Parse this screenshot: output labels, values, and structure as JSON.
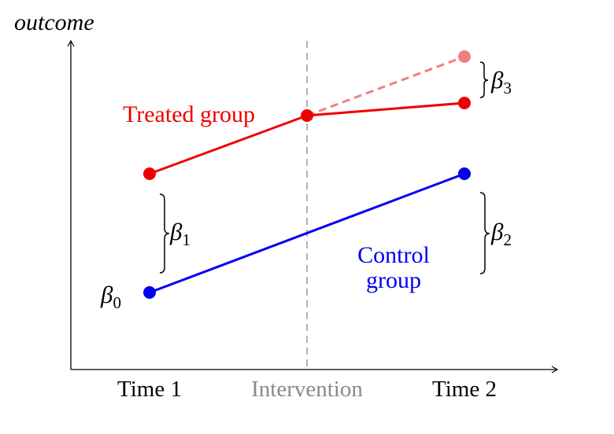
{
  "y_axis_label": "outcome",
  "x_labels": {
    "time1": "Time 1",
    "intervention": "Intervention",
    "time2": "Time 2"
  },
  "groups": {
    "treated": {
      "label": "Treated group",
      "color": "#ee0000"
    },
    "control": {
      "label_line1": "Control",
      "label_line2": "group",
      "color": "#0000ee"
    },
    "counterfactual": {
      "color": "#f08080"
    }
  },
  "params": {
    "b0": {
      "sym": "β",
      "sub": "0"
    },
    "b1": {
      "sym": "β",
      "sub": "1"
    },
    "b2": {
      "sym": "β",
      "sub": "2"
    },
    "b3": {
      "sym": "β",
      "sub": "3"
    }
  },
  "colors": {
    "axis": "#000000",
    "intervention_line": "#808080",
    "intervention_label": "#8a8a8a"
  }
}
